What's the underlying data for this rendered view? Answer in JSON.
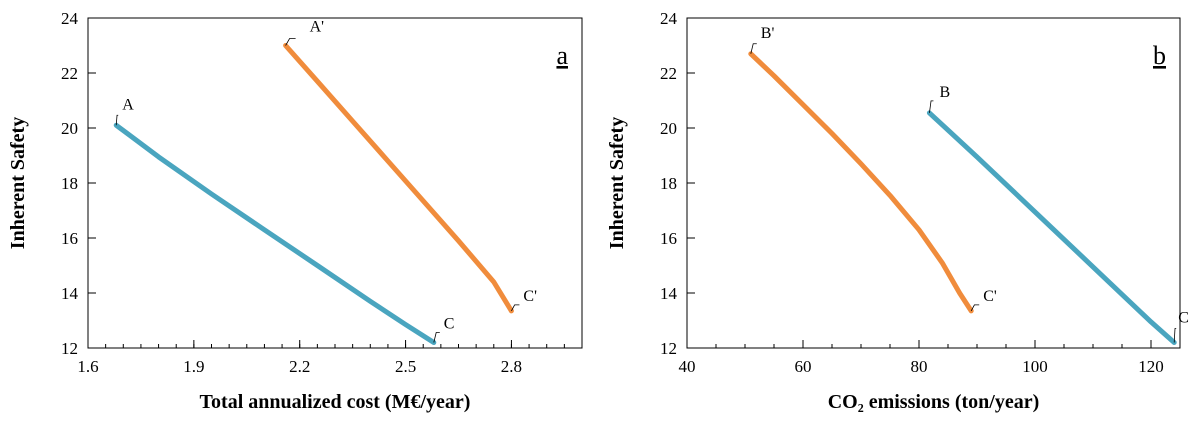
{
  "chart_data": [
    {
      "type": "line",
      "panel_label": "a",
      "xlabel": "Total annualized cost (M€/year)",
      "ylabel": "Inherent Safety",
      "xlim": [
        1.6,
        3.0
      ],
      "ylim": [
        12,
        24
      ],
      "x_ticks": [
        1.6,
        1.9,
        2.2,
        2.5,
        2.8
      ],
      "x_tick_labels": [
        "1.6",
        "1.9",
        "2.2",
        "2.5",
        "2.8"
      ],
      "x_minor_step": 0.05,
      "y_ticks": [
        12,
        14,
        16,
        18,
        20,
        22,
        24
      ],
      "y_tick_labels": [
        "12",
        "14",
        "16",
        "18",
        "20",
        "22",
        "24"
      ],
      "grid": false,
      "series": [
        {
          "color": "#4aa5bf",
          "x": [
            1.68,
            1.8,
            1.95,
            2.1,
            2.25,
            2.4,
            2.5,
            2.58
          ],
          "y": [
            20.1,
            18.95,
            17.6,
            16.3,
            15.0,
            13.7,
            12.85,
            12.2
          ]
        },
        {
          "color": "#f08c3c",
          "x": [
            2.16,
            2.25,
            2.35,
            2.45,
            2.55,
            2.65,
            2.75,
            2.8
          ],
          "y": [
            23.0,
            21.7,
            20.25,
            18.8,
            17.35,
            15.9,
            14.4,
            13.35
          ]
        }
      ],
      "point_labels": [
        {
          "text": "A",
          "x": 1.68,
          "y": 20.1
        },
        {
          "text": "A'",
          "x": 2.16,
          "y": 23.0
        },
        {
          "text": "C",
          "x": 2.58,
          "y": 12.2
        },
        {
          "text": "C'",
          "x": 2.8,
          "y": 13.35
        }
      ]
    },
    {
      "type": "line",
      "panel_label": "b",
      "xlabel": "CO₂ emissions (ton/year)",
      "ylabel": "Inherent Safety",
      "xlim": [
        40,
        125
      ],
      "ylim": [
        12,
        24
      ],
      "x_ticks": [
        40,
        60,
        80,
        100,
        120
      ],
      "x_tick_labels": [
        "40",
        "60",
        "80",
        "100",
        "120"
      ],
      "x_minor_step": 5,
      "y_ticks": [
        12,
        14,
        16,
        18,
        20,
        22,
        24
      ],
      "y_tick_labels": [
        "12",
        "14",
        "16",
        "18",
        "20",
        "22",
        "24"
      ],
      "grid": false,
      "series": [
        {
          "color": "#4aa5bf",
          "x": [
            81.8,
            90,
            100,
            110,
            120,
            124
          ],
          "y": [
            20.55,
            18.95,
            16.95,
            14.95,
            12.95,
            12.2
          ]
        },
        {
          "color": "#f08c3c",
          "x": [
            51,
            55,
            60,
            65,
            70,
            75,
            80,
            84,
            87,
            89
          ],
          "y": [
            22.7,
            21.9,
            20.85,
            19.8,
            18.7,
            17.55,
            16.3,
            15.1,
            14.0,
            13.35
          ]
        }
      ],
      "point_labels": [
        {
          "text": "B",
          "x": 81.8,
          "y": 20.55
        },
        {
          "text": "B'",
          "x": 51,
          "y": 22.7
        },
        {
          "text": "C",
          "x": 124,
          "y": 12.2
        },
        {
          "text": "C'",
          "x": 89,
          "y": 13.35
        }
      ]
    }
  ]
}
